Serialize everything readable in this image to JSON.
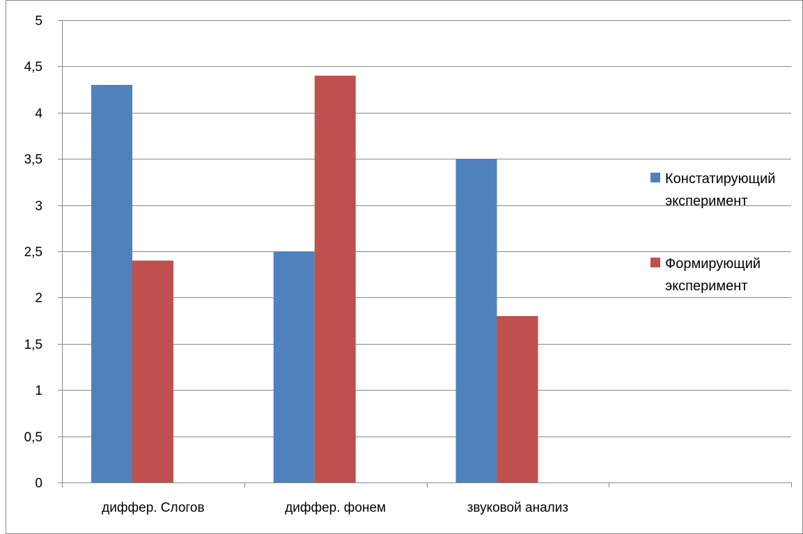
{
  "chart_data": {
    "type": "bar",
    "categories": [
      "диффер. Слогов",
      "диффер. фонем",
      "звуковой анализ",
      ""
    ],
    "series": [
      {
        "name": "Констатирующий эксперимент",
        "name_lines": [
          "Констатирующий",
          "эксперимент"
        ],
        "color": "#4f81bd",
        "values": [
          4.3,
          2.5,
          3.5,
          null
        ]
      },
      {
        "name": "Формирующий эксперимент",
        "name_lines": [
          "Формирующий",
          "эксперимент"
        ],
        "color": "#c0504d",
        "values": [
          2.4,
          4.4,
          1.8,
          null
        ]
      }
    ],
    "ylim": [
      0,
      5
    ],
    "yticks": [
      "0",
      "0,5",
      "1",
      "1,5",
      "2",
      "2,5",
      "3",
      "3,5",
      "4",
      "4,5",
      "5"
    ],
    "grid": true,
    "legend_position": "right",
    "axis_color": "#868686",
    "grid_color": "#868686"
  }
}
